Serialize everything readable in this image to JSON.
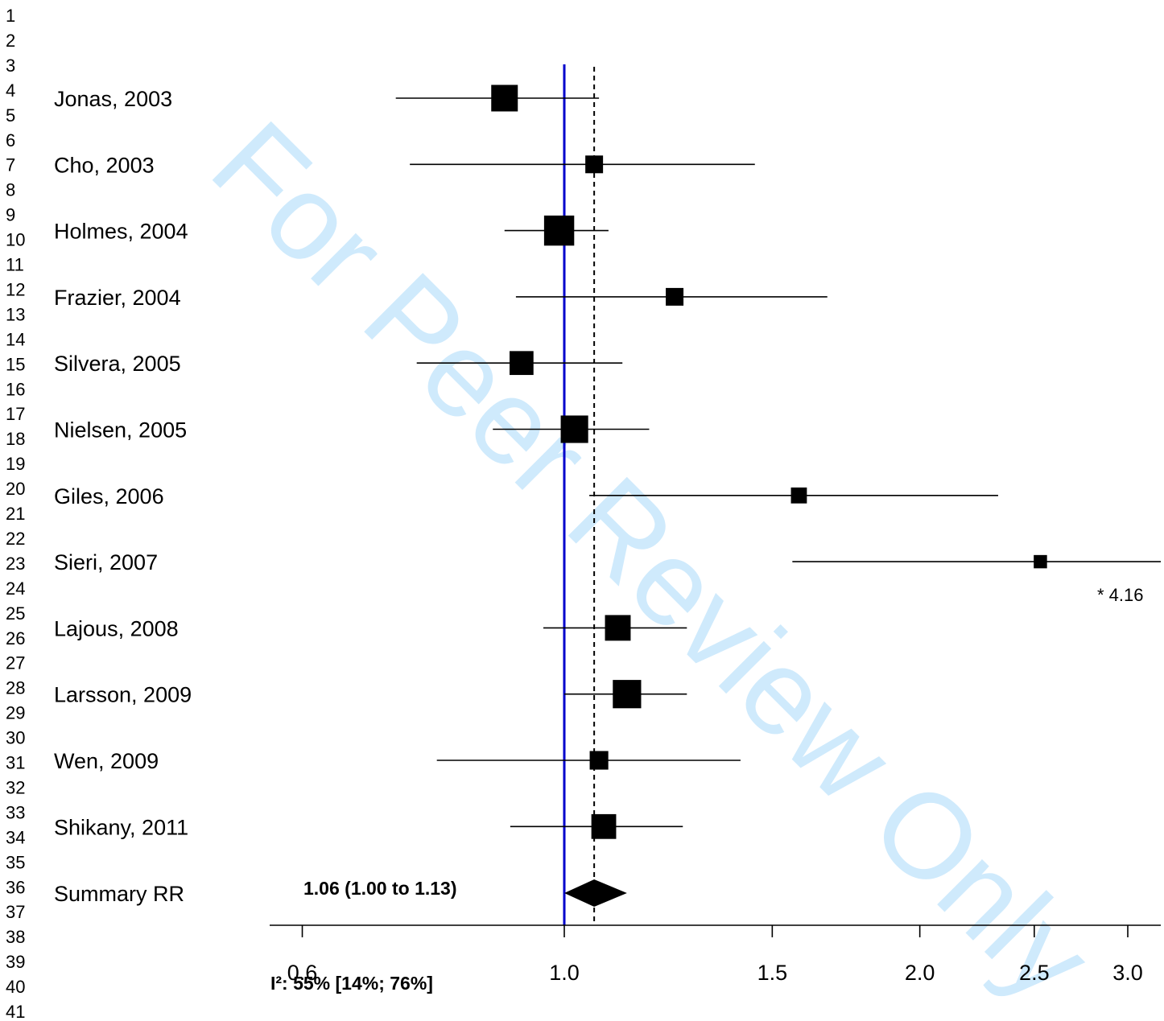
{
  "line_numbers": [
    "1",
    "2",
    "3",
    "4",
    "5",
    "6",
    "7",
    "8",
    "9",
    "10",
    "11",
    "12",
    "13",
    "14",
    "15",
    "16",
    "17",
    "18",
    "19",
    "20",
    "21",
    "22",
    "23",
    "24",
    "25",
    "26",
    "27",
    "28",
    "29",
    "30",
    "31",
    "32",
    "33",
    "34",
    "35",
    "36",
    "37",
    "38",
    "39",
    "40",
    "41"
  ],
  "watermark": "For Peer Review Only",
  "chart_data": {
    "type": "forest",
    "xscale": "log",
    "xlim": [
      0.57,
      3.2
    ],
    "xticks": [
      0.6,
      1.0,
      1.5,
      2.0,
      2.5,
      3.0
    ],
    "xtick_labels": [
      "0.6",
      "1.0",
      "1.5",
      "2.0",
      "2.5",
      "3.0"
    ],
    "reference_line": 1.0,
    "reference_color": "#0000cc",
    "pooled_line": 1.06,
    "studies": [
      {
        "label": "Jonas, 2003",
        "rr": 0.89,
        "lower": 0.72,
        "upper": 1.07,
        "weight": 1.5
      },
      {
        "label": "Cho, 2003",
        "rr": 1.06,
        "lower": 0.74,
        "upper": 1.45,
        "weight": 1.0
      },
      {
        "label": "Holmes, 2004",
        "rr": 0.99,
        "lower": 0.89,
        "upper": 1.09,
        "weight": 1.7
      },
      {
        "label": "Frazier, 2004",
        "rr": 1.24,
        "lower": 0.91,
        "upper": 1.67,
        "weight": 1.0
      },
      {
        "label": "Silvera, 2005",
        "rr": 0.92,
        "lower": 0.75,
        "upper": 1.12,
        "weight": 1.35
      },
      {
        "label": "Nielsen, 2005",
        "rr": 1.02,
        "lower": 0.87,
        "upper": 1.18,
        "weight": 1.55
      },
      {
        "label": "Giles, 2006",
        "rr": 1.58,
        "lower": 1.05,
        "upper": 2.33,
        "weight": 0.9
      },
      {
        "label": "Sieri, 2007",
        "rr": 2.53,
        "lower": 1.56,
        "upper": 4.16,
        "weight": 0.75,
        "upper_truncated": true
      },
      {
        "label": "Lajous, 2008",
        "rr": 1.11,
        "lower": 0.96,
        "upper": 1.27,
        "weight": 1.45
      },
      {
        "label": "Larsson, 2009",
        "rr": 1.13,
        "lower": 1.0,
        "upper": 1.27,
        "weight": 1.6
      },
      {
        "label": "Wen, 2009",
        "rr": 1.07,
        "lower": 0.78,
        "upper": 1.41,
        "weight": 1.05
      },
      {
        "label": "Shikany, 2011",
        "rr": 1.08,
        "lower": 0.9,
        "upper": 1.26,
        "weight": 1.4
      }
    ],
    "summary": {
      "label": "Summary RR",
      "rr": 1.06,
      "lower": 1.0,
      "upper": 1.13,
      "text": "1.06 (1.00 to 1.13)"
    },
    "truncation_note": "* 4.16",
    "heterogeneity": "I²: 55% [14%; 76%]"
  }
}
